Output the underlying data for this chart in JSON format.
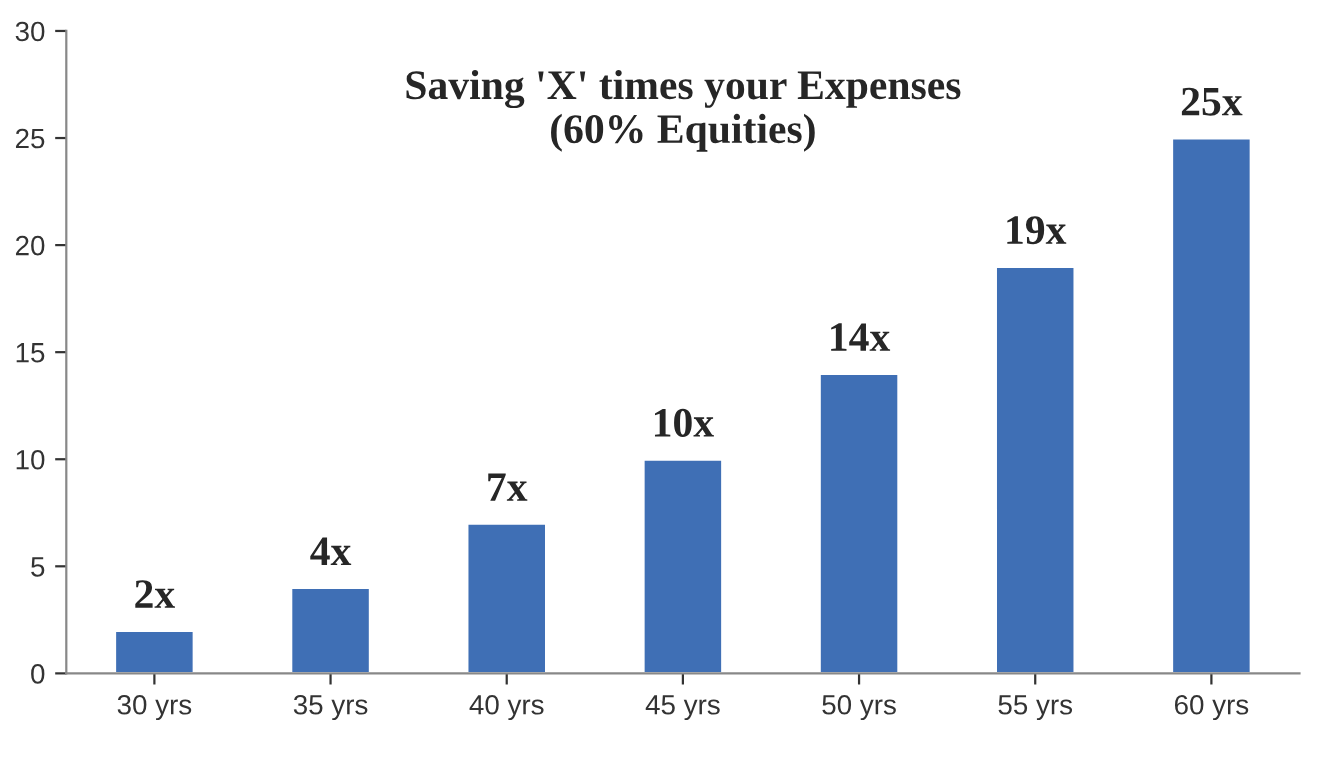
{
  "chart_data": {
    "type": "bar",
    "title": "Saving 'X' times your Expenses\n(60% Equities)",
    "categories": [
      "30 yrs",
      "35 yrs",
      "40 yrs",
      "45 yrs",
      "50 yrs",
      "55 yrs",
      "60 yrs"
    ],
    "values": [
      2,
      4,
      7,
      10,
      14,
      19,
      25
    ],
    "value_labels": [
      "2x",
      "4x",
      "7x",
      "10x",
      "14x",
      "19x",
      "25x"
    ],
    "color": "#3f6fb5",
    "ylim": [
      0,
      30
    ],
    "yticks": [
      0,
      5,
      10,
      15,
      20,
      25,
      30
    ],
    "grid": false,
    "legend": false
  }
}
